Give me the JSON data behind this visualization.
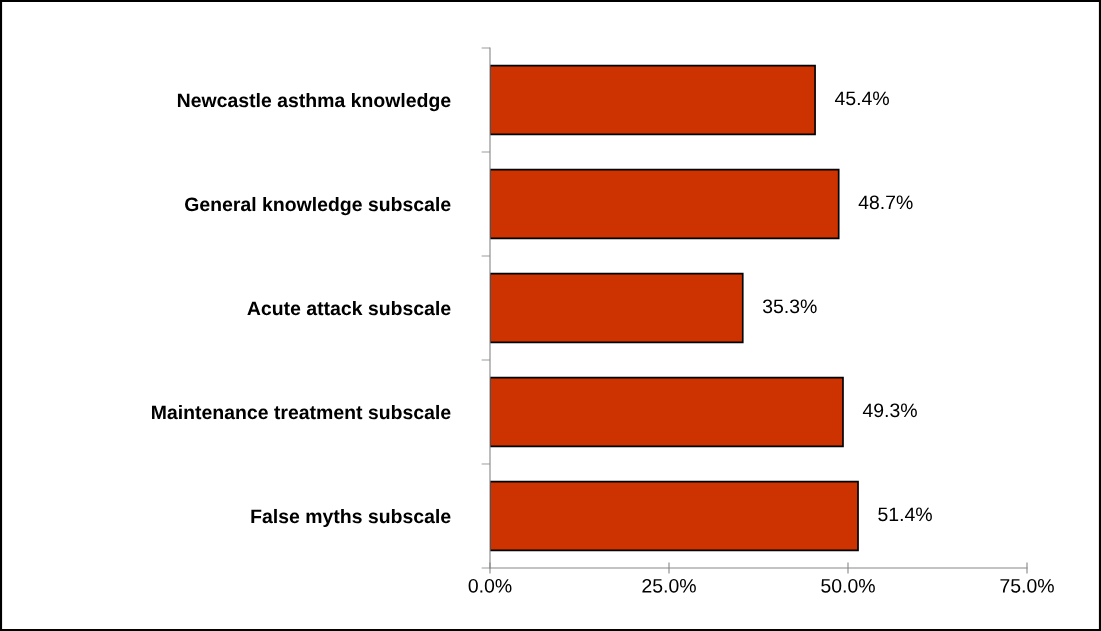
{
  "chart_data": {
    "type": "bar",
    "orientation": "horizontal",
    "categories": [
      "Newcastle asthma knowledge",
      "General knowledge subscale",
      "Acute attack subscale",
      "Maintenance treatment subscale",
      "False myths subscale"
    ],
    "values": [
      45.4,
      48.7,
      35.3,
      49.3,
      51.4
    ],
    "value_labels": [
      "45.4%",
      "48.7%",
      "35.3%",
      "49.3%",
      "51.4%"
    ],
    "color": "#cc3300",
    "xlim": [
      0,
      75
    ],
    "xticks": [
      {
        "value": 0,
        "label": "0.0%"
      },
      {
        "value": 25,
        "label": "25.0%"
      },
      {
        "value": 50,
        "label": "50.0%"
      },
      {
        "value": 75,
        "label": "75.0%"
      }
    ],
    "grid": false,
    "legend": false
  }
}
